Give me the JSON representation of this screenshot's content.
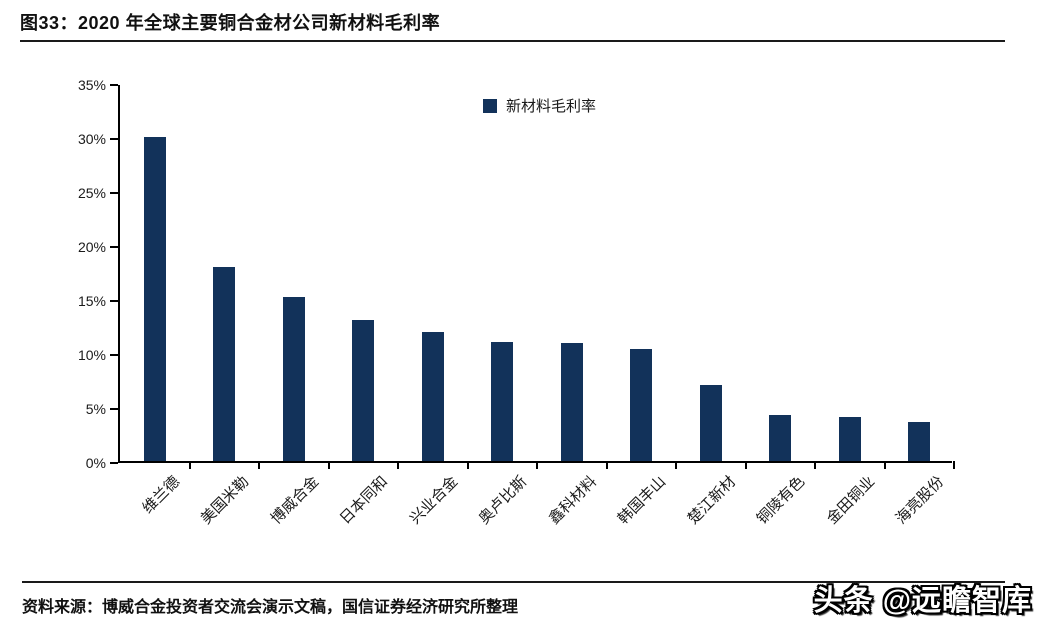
{
  "header": {
    "title": "图33：2020 年全球主要铜合金材公司新材料毛利率"
  },
  "colors": {
    "bar": "#12325A",
    "axis": "#000000"
  },
  "chart_data": {
    "type": "bar",
    "title": "图33：2020 年全球主要铜合金材公司新材料毛利率",
    "categories": [
      "维兰德",
      "美国米勒",
      "博威合金",
      "日本同和",
      "兴业合金",
      "奥卢比斯",
      "鑫科材料",
      "韩国丰山",
      "楚江新材",
      "铜陵有色",
      "金田铜业",
      "海亮股份"
    ],
    "series": [
      {
        "name": "新材料毛利率",
        "values": [
          30.0,
          18.0,
          15.2,
          13.1,
          11.9,
          11.0,
          10.9,
          10.4,
          7.0,
          4.3,
          4.1,
          3.6
        ]
      }
    ],
    "xlabel": "",
    "ylabel": "",
    "ylim": [
      0,
      35
    ],
    "ytick_step": 5,
    "ytick_labels": [
      "0%",
      "5%",
      "10%",
      "15%",
      "20%",
      "25%",
      "30%",
      "35%"
    ],
    "grid": false,
    "legend_position": "top-center"
  },
  "footer": {
    "source": "资料来源：博威合金投资者交流会演示文稿，国信证券经济研究所整理"
  },
  "watermark": {
    "text": "头条 @远瞻智库"
  }
}
